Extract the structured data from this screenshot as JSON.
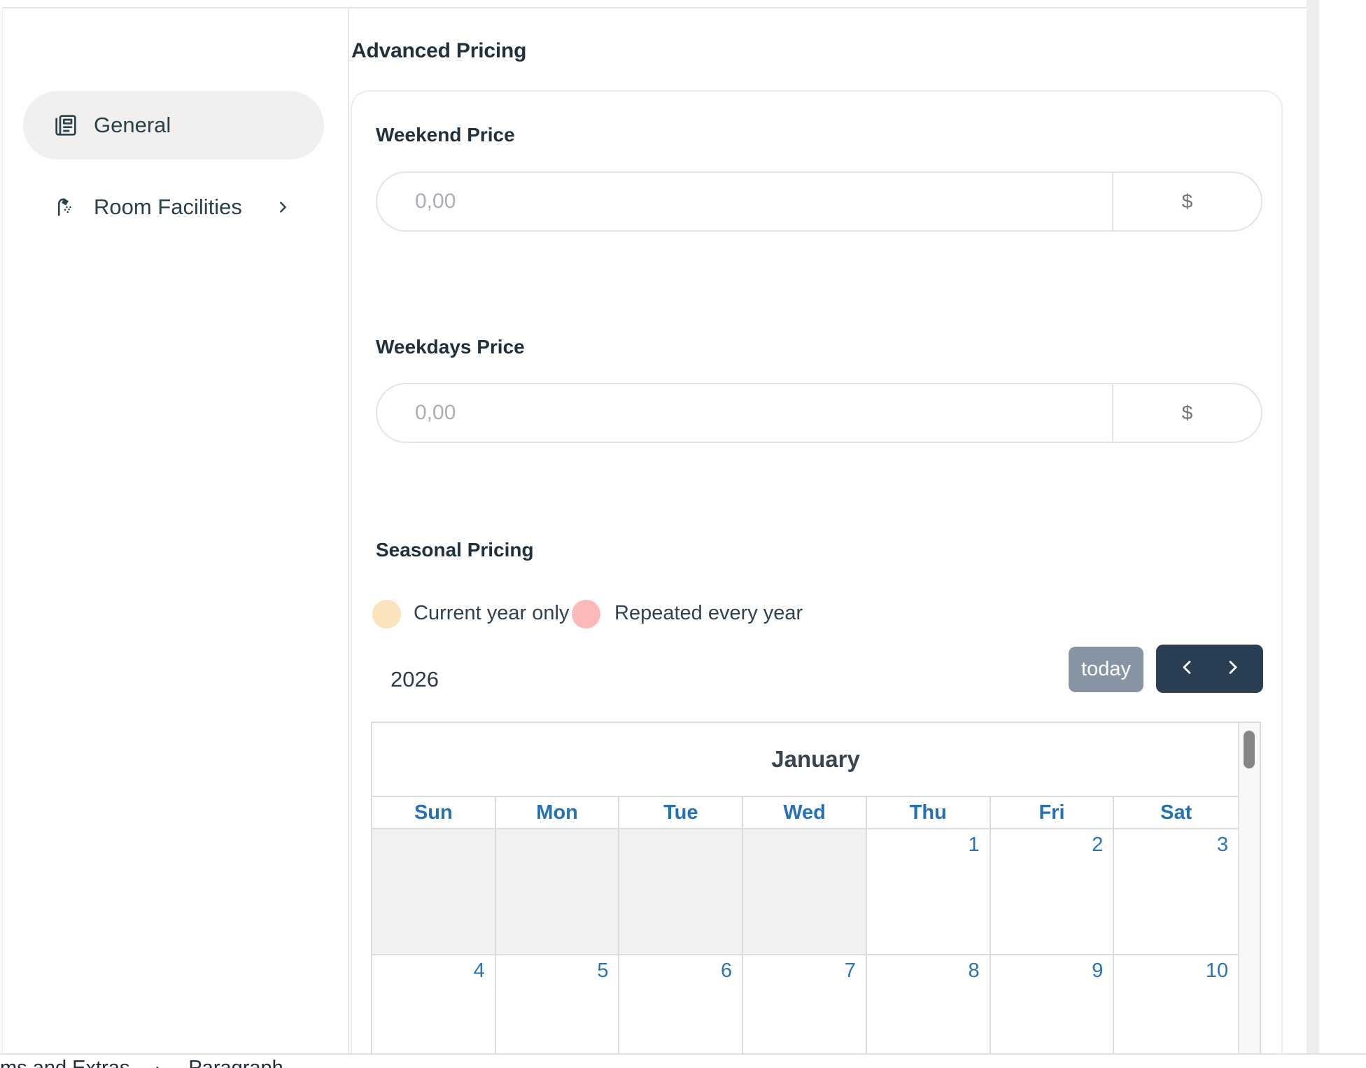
{
  "sidebar": {
    "items": [
      {
        "label": "General",
        "icon": "newspaper-icon",
        "active": true
      },
      {
        "label": "Room Facilities",
        "icon": "shower-icon",
        "active": false
      }
    ]
  },
  "pricing": {
    "heading": "Advanced Pricing",
    "fields": [
      {
        "label": "Weekend Price",
        "placeholder": "0,00",
        "currency": "$"
      },
      {
        "label": "Weekdays Price",
        "placeholder": "0,00",
        "currency": "$"
      }
    ]
  },
  "seasonal": {
    "heading": "Seasonal Pricing",
    "legend": [
      {
        "label": "Current year only",
        "color": "#fbe3bc"
      },
      {
        "label": "Repeated every year",
        "color": "#fbb9b9"
      }
    ],
    "year": "2026",
    "today_label": "today"
  },
  "calendar": {
    "month": "January",
    "day_headers": [
      "Sun",
      "Mon",
      "Tue",
      "Wed",
      "Thu",
      "Fri",
      "Sat"
    ],
    "weeks": [
      [
        "",
        "",
        "",
        "",
        "1",
        "2",
        "3"
      ],
      [
        "4",
        "5",
        "6",
        "7",
        "8",
        "9",
        "10"
      ]
    ],
    "disabled_days": [
      [
        true,
        true,
        true,
        true,
        false,
        false,
        false
      ],
      [
        false,
        false,
        false,
        false,
        false,
        false,
        false
      ]
    ]
  },
  "footer": {
    "breadcrumb_partial": "ms and Extras",
    "breadcrumb_current": "Paragraph"
  },
  "colors": {
    "accent_blue": "#2371b7",
    "nav_dark": "#2a3e54",
    "today_gray": "#8794a3"
  }
}
